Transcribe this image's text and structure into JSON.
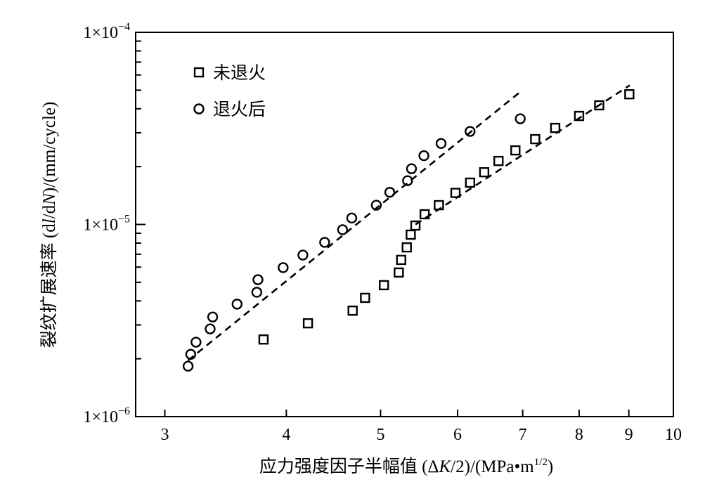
{
  "chart_data": {
    "type": "scatter",
    "title": "",
    "xlabel": {
      "prefix": "应力强度因子半幅值 (Δ",
      "italic": "K",
      "middle": "/2)/(MPa•m",
      "sup": "1/2",
      "suffix": ")"
    },
    "ylabel": {
      "prefix": "裂纹扩展速率 (d",
      "italic1": "l",
      "middle": "/d",
      "italic2": "N",
      "suffix": ")/(mm/cycle)"
    },
    "xscale": "log",
    "yscale": "log",
    "xlim": [
      2.8,
      10
    ],
    "ylim": [
      1e-06,
      0.0001
    ],
    "x_ticks": [
      3,
      4,
      5,
      6,
      7,
      8,
      9,
      10
    ],
    "x_tick_labels": [
      "3",
      "4",
      "5",
      "6",
      "7",
      "8",
      "9",
      "10"
    ],
    "y_ticks": [
      0.0001,
      1e-05,
      1e-06
    ],
    "y_tick_labels": [
      {
        "base": "1×10",
        "exp": "−4"
      },
      {
        "base": "1×10",
        "exp": "−5"
      },
      {
        "base": "1×10",
        "exp": "−6"
      }
    ],
    "grid": false,
    "legend_position": "top-left",
    "series": [
      {
        "name": "未退火",
        "marker": "square",
        "x": [
          3.79,
          4.21,
          4.68,
          4.82,
          5.04,
          5.22,
          5.25,
          5.32,
          5.37,
          5.43,
          5.55,
          5.74,
          5.97,
          6.18,
          6.39,
          6.61,
          6.88,
          7.21,
          7.56,
          8.0,
          8.39,
          9.01
        ],
        "y": [
          2.52e-06,
          3.06e-06,
          3.56e-06,
          4.15e-06,
          4.83e-06,
          5.62e-06,
          6.54e-06,
          7.6e-06,
          8.85e-06,
          9.87e-06,
          1.13e-05,
          1.26e-05,
          1.46e-05,
          1.65e-05,
          1.87e-05,
          2.14e-05,
          2.43e-05,
          2.78e-05,
          3.18e-05,
          3.67e-05,
          4.17e-05,
          4.76e-05
        ],
        "fit_line": {
          "x": [
            5.43,
            9.02
          ],
          "y": [
            1e-05,
            5.3e-05
          ]
        }
      },
      {
        "name": "退火后",
        "marker": "circle",
        "x": [
          3.17,
          3.19,
          3.23,
          3.34,
          3.36,
          3.56,
          3.73,
          3.74,
          3.97,
          4.16,
          4.38,
          4.57,
          4.67,
          4.95,
          5.11,
          5.33,
          5.38,
          5.54,
          5.77,
          6.18,
          6.96
        ],
        "y": [
          1.83e-06,
          2.11e-06,
          2.44e-06,
          2.86e-06,
          3.3e-06,
          3.85e-06,
          4.44e-06,
          5.16e-06,
          5.96e-06,
          6.93e-06,
          8.07e-06,
          9.39e-06,
          1.08e-05,
          1.26e-05,
          1.47e-05,
          1.69e-05,
          1.95e-05,
          2.28e-05,
          2.64e-05,
          3.05e-05,
          3.55e-05
        ],
        "fit_line": {
          "x": [
            3.17,
            6.96
          ],
          "y": [
            1.96e-06,
            4.9e-05
          ]
        }
      }
    ]
  }
}
